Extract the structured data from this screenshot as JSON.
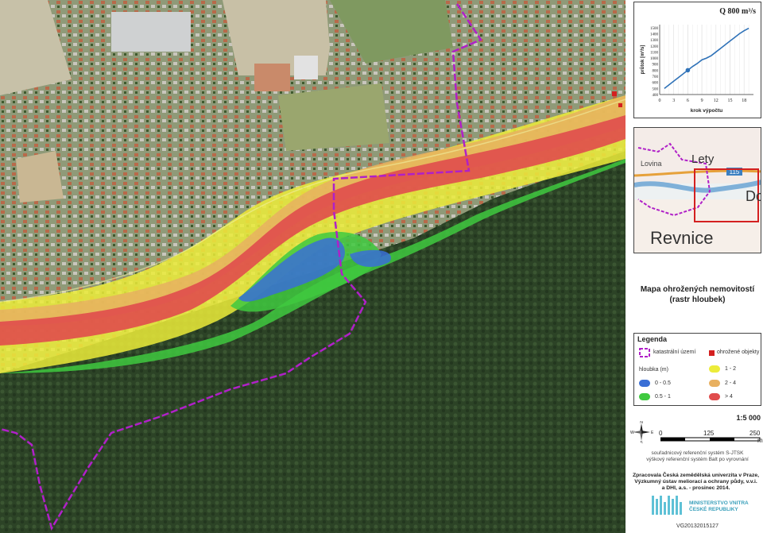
{
  "chart_data": {
    "type": "line",
    "title": "Q 800 m³/s",
    "xlabel": "krok výpočtu",
    "ylabel": "průtok [m³/s]",
    "xticks": [
      0,
      3,
      6,
      9,
      12,
      15,
      18
    ],
    "yticks": [
      400,
      500,
      600,
      700,
      800,
      900,
      1000,
      1100,
      1200,
      1300,
      1400,
      1500
    ],
    "xlim": [
      0,
      20
    ],
    "ylim": [
      400,
      1550
    ],
    "series": [
      {
        "values": [
          [
            1,
            500
          ],
          [
            2,
            560
          ],
          [
            3,
            620
          ],
          [
            4,
            680
          ],
          [
            5,
            740
          ],
          [
            6,
            800
          ],
          [
            7,
            860
          ],
          [
            8,
            910
          ],
          [
            9,
            970
          ],
          [
            10,
            1000
          ],
          [
            11,
            1040
          ],
          [
            12,
            1100
          ],
          [
            13,
            1160
          ],
          [
            14,
            1220
          ],
          [
            15,
            1280
          ],
          [
            16,
            1340
          ],
          [
            17,
            1400
          ],
          [
            18,
            1450
          ],
          [
            19,
            1490
          ]
        ]
      }
    ],
    "highlight": {
      "x": 6,
      "y": 800
    }
  },
  "inset": {
    "labels": [
      "Lety",
      "Dob",
      "Revnice",
      "115",
      "Lovina"
    ]
  },
  "title": {
    "line1": "Mapa ohrožených nemovitostí",
    "line2": "(rastr hloubek)"
  },
  "legend": {
    "heading": "Legenda",
    "cadastral": "katastrální území",
    "buildings": "ohrožené objekty",
    "depth_label": "hloubka (m)",
    "classes": [
      {
        "label": "0 - 0.5",
        "color": "#3a6fd6"
      },
      {
        "label": "0.5 - 1",
        "color": "#3fc93f"
      },
      {
        "label": "1 - 2",
        "color": "#ecec3a"
      },
      {
        "label": "2 - 4",
        "color": "#e8b060"
      },
      {
        "label": "> 4",
        "color": "#e04c4c"
      }
    ],
    "building_color": "#d42020",
    "boundary_color": "#b020c8"
  },
  "scale": {
    "ratio": "1:5 000",
    "ticks": [
      "0",
      "125",
      "250"
    ],
    "unit": "m"
  },
  "reference": {
    "line1": "souřadnicový referenční systém S-JTSK",
    "line2": "výškový referenční systém Balt po vyrovnání"
  },
  "credits": {
    "line1": "Zpracovala Česká zemědělská univerzita v Praze,",
    "line2": "Výzkumný ústav meliorací a ochrany půdy, v.v.i.",
    "line3": "a DHI, a.s. - prosinec 2014."
  },
  "logo": {
    "line1": "MINISTERSTVO VNITRA",
    "line2": "ČESKÉ REPUBLIKY"
  },
  "code": "VG20132015127",
  "compass": {
    "n": "N",
    "s": "S",
    "e": "E",
    "w": "W"
  }
}
